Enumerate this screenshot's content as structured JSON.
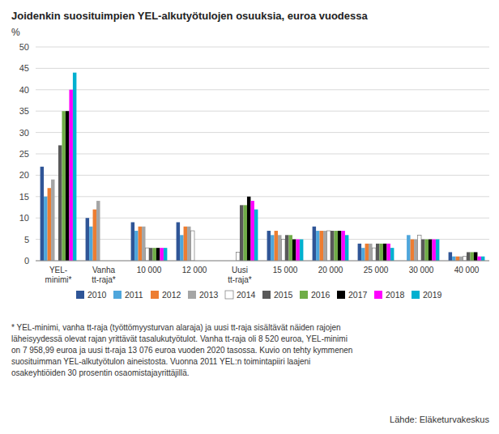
{
  "chart_data": {
    "type": "bar",
    "title": "Joidenkin suosituimpien YEL-alkutyötulojen osuuksia, euroa vuodessa",
    "y_label": "%",
    "categories": [
      "YEL-\nminimi*",
      "Vanha\ntt-raja*",
      "10 000",
      "12 000",
      "Uusi\ntt-raja*",
      "15 000",
      "20 000",
      "25 000",
      "30 000",
      "40 000"
    ],
    "series": [
      {
        "name": "2010",
        "color": "#2F5597",
        "values": [
          22,
          10,
          9,
          9,
          0,
          7,
          8,
          4,
          0,
          2
        ]
      },
      {
        "name": "2011",
        "color": "#4EA6DC",
        "values": [
          15,
          8,
          7,
          6,
          0,
          6,
          7,
          3,
          6,
          1
        ]
      },
      {
        "name": "2012",
        "color": "#ED7D31",
        "values": [
          17,
          12,
          8,
          8,
          0,
          7,
          7,
          4,
          5,
          1
        ]
      },
      {
        "name": "2013",
        "color": "#A5A5A5",
        "values": [
          19,
          14,
          8,
          8,
          0,
          6,
          7,
          4,
          5,
          1
        ]
      },
      {
        "name": "2014",
        "color": "#FFFFFF",
        "values": [
          0,
          0,
          3,
          7,
          2,
          5,
          7,
          3,
          6,
          1
        ]
      },
      {
        "name": "2015",
        "color": "#595959",
        "values": [
          27,
          0,
          3,
          0,
          13,
          6,
          7,
          4,
          5,
          2
        ]
      },
      {
        "name": "2016",
        "color": "#70AD47",
        "values": [
          35,
          0,
          3,
          0,
          13,
          6,
          7,
          4,
          5,
          2
        ]
      },
      {
        "name": "2017",
        "color": "#000000",
        "values": [
          35,
          0,
          3,
          0,
          15,
          5,
          7,
          4,
          5,
          2
        ]
      },
      {
        "name": "2018",
        "color": "#FF00FF",
        "values": [
          40,
          0,
          3,
          0,
          14,
          5,
          7,
          4,
          5,
          1
        ]
      },
      {
        "name": "2019",
        "color": "#00B0D0",
        "values": [
          44,
          0,
          3,
          0,
          12,
          5,
          6,
          3,
          5,
          1
        ]
      }
    ],
    "ylim": [
      0,
      50
    ],
    "yticks": [
      0,
      5,
      10,
      15,
      20,
      25,
      30,
      35,
      40,
      45,
      50
    ],
    "grid": true,
    "legend": "bottom",
    "annotations": [
      "* YEL-minimi, vanha tt-raja (työttömyysturvan alaraja) ja uusi tt-raja sisältävät näiden rajojen",
      "läheisyydessä olevat rajan yrittävät tasalukutyötulot. Vanha tt-raja oli 8 520 euroa, YEL-minimi",
      "on 7 958,99 euroa ja uusi tt-raja 13 076 euroa vuoden 2020 tasossa. Kuvio on tehty kymmenen",
      "suosituimman YEL-alkutyötulon aineistosta. Vuonna 2011 YEL:n toimintapiiri laajeni",
      "osakeyhtiöiden 30 prosentin osaomistajayrittäjillä."
    ],
    "source": "Lähde: Eläketurvakeskus"
  }
}
